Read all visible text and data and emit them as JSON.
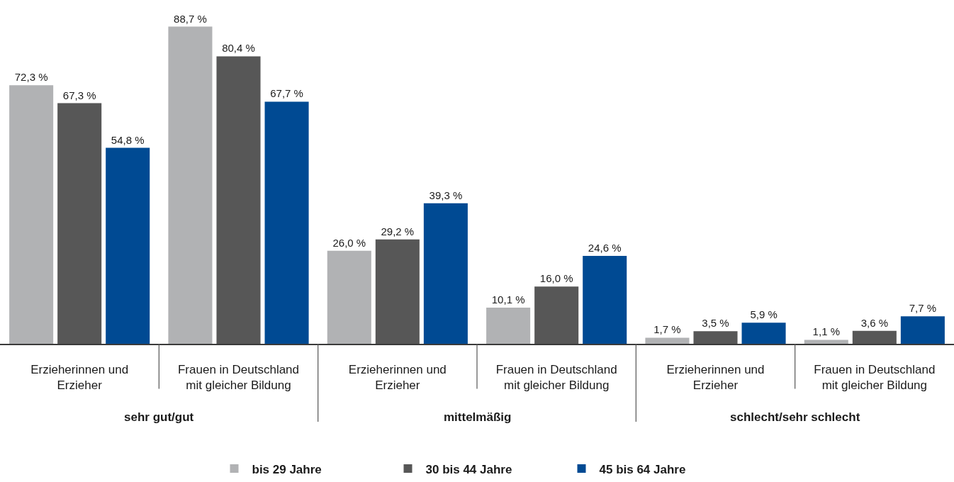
{
  "chart_data": {
    "type": "bar",
    "categories": [
      "Erzieherinnen und Erzieher",
      "Frauen in Deutschland mit gleicher Bildung",
      "Erzieherinnen und Erzieher",
      "Frauen in Deutschland mit gleicher Bildung",
      "Erzieherinnen und Erzieher",
      "Frauen in Deutschland mit gleicher Bildung"
    ],
    "series": [
      {
        "name": "bis 29 Jahre",
        "color": "#b1b2b4",
        "values": [
          72.3,
          88.7,
          26.0,
          10.1,
          1.7,
          1.1
        ],
        "value_labels": [
          "72,3 %",
          "88,7 %",
          "26,0 %",
          "10,1 %",
          "1,7 %",
          "1,1 %"
        ]
      },
      {
        "name": "30 bis 44 Jahre",
        "color": "#575757",
        "values": [
          67.3,
          80.4,
          29.2,
          16.0,
          3.5,
          3.6
        ],
        "value_labels": [
          "67,3 %",
          "80,4 %",
          "29,2 %",
          "16,0 %",
          "3,5 %",
          "3,6 %"
        ]
      },
      {
        "name": "45 bis 64 Jahre",
        "color": "#004a93",
        "values": [
          54.8,
          67.7,
          39.3,
          24.6,
          5.9,
          7.7
        ],
        "value_labels": [
          "54,8 %",
          "67,7 %",
          "39,3 %",
          "24,6 %",
          "5,9 %",
          "7,7 %"
        ]
      }
    ],
    "annotations": [
      "sehr gut/gut",
      "mittelmäßig",
      "schlecht/sehr schlecht"
    ],
    "legend": "bottom"
  }
}
